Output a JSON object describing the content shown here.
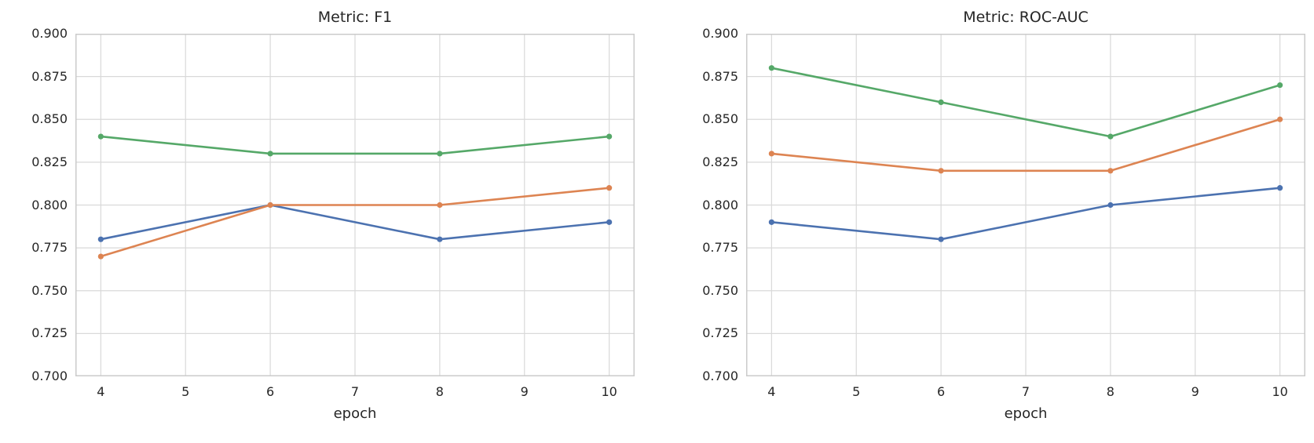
{
  "figure": {
    "background": "#FFFFFF",
    "grid_color": "#D9D9D9",
    "spine_color": "#CBCBCB",
    "text_color": "#262626",
    "grid": true,
    "legend": "none"
  },
  "chart_data": [
    {
      "type": "line",
      "title": "Metric: F1",
      "xlabel": "epoch",
      "ylabel": "",
      "x": [
        4,
        6,
        8,
        10
      ],
      "x_tick_labels": [
        "4",
        "5",
        "6",
        "7",
        "8",
        "9",
        "10"
      ],
      "x_tick_values": [
        4,
        5,
        6,
        7,
        8,
        9,
        10
      ],
      "y_tick_labels": [
        "0.700",
        "0.725",
        "0.750",
        "0.775",
        "0.800",
        "0.825",
        "0.850",
        "0.875",
        "0.900"
      ],
      "y_tick_values": [
        0.7,
        0.725,
        0.75,
        0.775,
        0.8,
        0.825,
        0.85,
        0.875,
        0.9
      ],
      "xlim": [
        3.7,
        10.3
      ],
      "ylim": [
        0.7,
        0.9
      ],
      "series": [
        {
          "name": "series-blue",
          "color": "#4C72B0",
          "values": [
            0.78,
            0.8,
            0.78,
            0.79
          ]
        },
        {
          "name": "series-orange",
          "color": "#DD8452",
          "values": [
            0.77,
            0.8,
            0.8,
            0.81
          ]
        },
        {
          "name": "series-green",
          "color": "#55A868",
          "values": [
            0.84,
            0.83,
            0.83,
            0.84
          ]
        }
      ]
    },
    {
      "type": "line",
      "title": "Metric: ROC-AUC",
      "xlabel": "epoch",
      "ylabel": "",
      "x": [
        4,
        6,
        8,
        10
      ],
      "x_tick_labels": [
        "4",
        "5",
        "6",
        "7",
        "8",
        "9",
        "10"
      ],
      "x_tick_values": [
        4,
        5,
        6,
        7,
        8,
        9,
        10
      ],
      "y_tick_labels": [
        "0.700",
        "0.725",
        "0.750",
        "0.775",
        "0.800",
        "0.825",
        "0.850",
        "0.875",
        "0.900"
      ],
      "y_tick_values": [
        0.7,
        0.725,
        0.75,
        0.775,
        0.8,
        0.825,
        0.85,
        0.875,
        0.9
      ],
      "xlim": [
        3.7,
        10.3
      ],
      "ylim": [
        0.7,
        0.9
      ],
      "series": [
        {
          "name": "series-blue",
          "color": "#4C72B0",
          "values": [
            0.79,
            0.78,
            0.8,
            0.81
          ]
        },
        {
          "name": "series-orange",
          "color": "#DD8452",
          "values": [
            0.83,
            0.82,
            0.82,
            0.85
          ]
        },
        {
          "name": "series-green",
          "color": "#55A868",
          "values": [
            0.88,
            0.86,
            0.84,
            0.87
          ]
        }
      ]
    }
  ]
}
